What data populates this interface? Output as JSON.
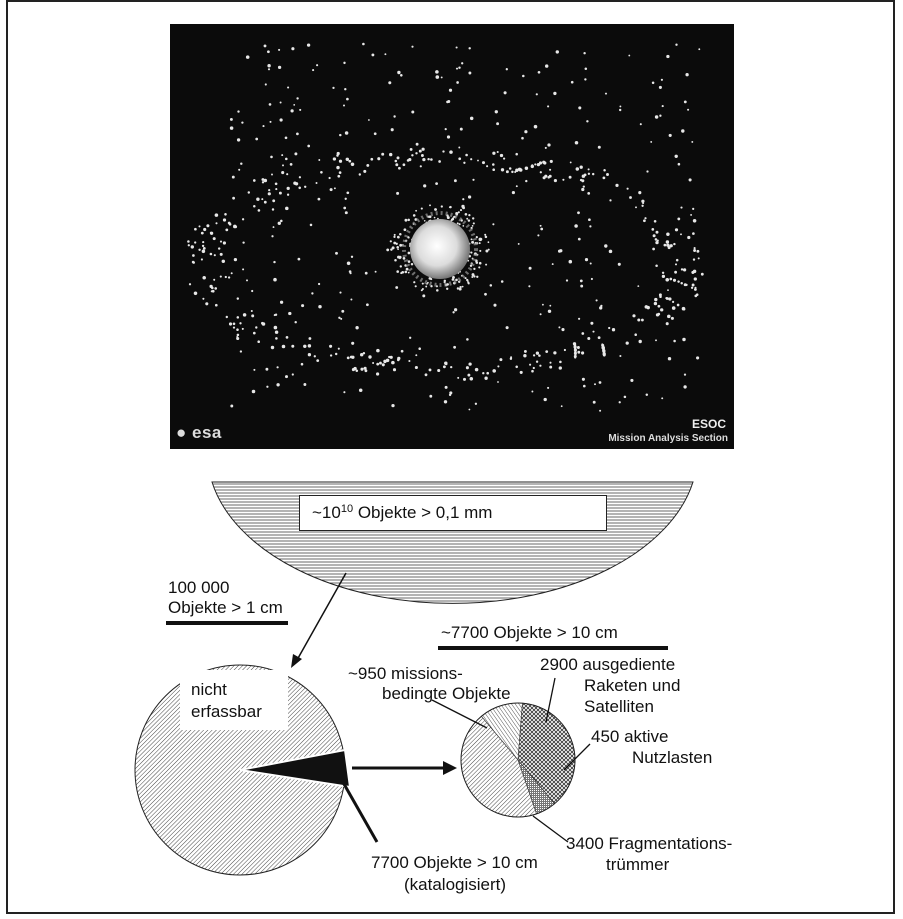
{
  "photo": {
    "logo_text": "esa",
    "credit_line1": "ESOC",
    "credit_line2": "Mission Analysis Section"
  },
  "diagram": {
    "top_label_prefix": "~10",
    "top_label_exp": "10",
    "top_label_suffix": " Objekte > 0,1 mm",
    "mid_label_line1": "100 000",
    "mid_label_line2": "Objekte > 1 cm",
    "big_pie_label_line1": "nicht",
    "big_pie_label_line2": "erfassbar",
    "catalog_label_line1": "7700 Objekte > 10 cm",
    "catalog_label_line2": "(katalogisiert)",
    "small_title": "~7700 Objekte > 10 cm",
    "slices": {
      "mission_line1": "~950 missions-",
      "mission_line2": "bedingte Objekte",
      "spent_line1": "2900 ausgediente",
      "spent_line2": "Raketen und",
      "spent_line3": "Satelliten",
      "active_line1": "450 aktive",
      "active_line2": "Nutzlasten",
      "frag_line1": "3400 Fragmentations-",
      "frag_line2": "trümmer"
    }
  },
  "chart_data": {
    "type": "pie",
    "title": "~7700 Objekte > 10 cm",
    "categories": [
      "missionsbedingte Objekte",
      "ausgediente Raketen und Satelliten",
      "aktive Nutzlasten",
      "Fragmentationstrümmer"
    ],
    "values": [
      950,
      2900,
      450,
      3400
    ]
  },
  "colors": {
    "ink": "#111111",
    "photo_bg": "#0b0b0b",
    "paper": "#ffffff"
  }
}
